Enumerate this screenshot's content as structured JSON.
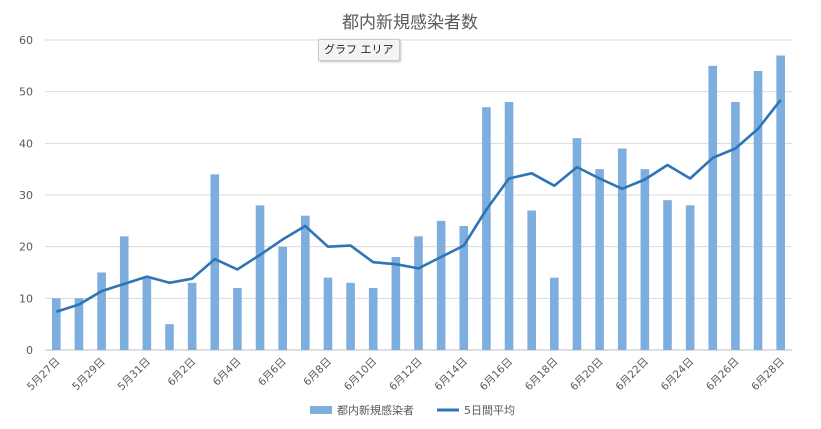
{
  "tooltip": "グラフ エリア",
  "colors": {
    "bar": "#7eaedd",
    "line": "#2e75b6",
    "grid": "#d9d9d9",
    "axis": "#bfbfbf",
    "text": "#595959"
  },
  "chart_data": {
    "type": "bar",
    "title": "都内新規感染者数",
    "xlabel": "",
    "ylabel": "",
    "ylim": [
      0,
      60
    ],
    "yticks": [
      0,
      10,
      20,
      30,
      40,
      50,
      60
    ],
    "grid": true,
    "legend_position": "bottom",
    "categories": [
      "5月27日",
      "5月28日",
      "5月29日",
      "5月30日",
      "5月31日",
      "6月1日",
      "6月2日",
      "6月3日",
      "6月4日",
      "6月5日",
      "6月6日",
      "6月7日",
      "6月8日",
      "6月9日",
      "6月10日",
      "6月11日",
      "6月12日",
      "6月13日",
      "6月14日",
      "6月15日",
      "6月16日",
      "6月17日",
      "6月18日",
      "6月19日",
      "6月20日",
      "6月21日",
      "6月22日",
      "6月23日",
      "6月24日",
      "6月25日",
      "6月26日",
      "6月27日",
      "6月28日"
    ],
    "x_tick_labels": [
      "5月27日",
      "5月29日",
      "5月31日",
      "6月2日",
      "6月4日",
      "6月6日",
      "6月8日",
      "6月10日",
      "6月12日",
      "6月14日",
      "6月16日",
      "6月18日",
      "6月20日",
      "6月22日",
      "6月24日",
      "6月26日",
      "6月28日"
    ],
    "series": [
      {
        "name": "都内新規感染者",
        "type": "bar",
        "values": [
          10,
          10,
          15,
          22,
          14,
          5,
          13,
          34,
          12,
          28,
          20,
          26,
          14,
          13,
          12,
          18,
          22,
          25,
          24,
          47,
          48,
          27,
          14,
          41,
          35,
          39,
          35,
          29,
          28,
          55,
          48,
          54,
          57
        ]
      },
      {
        "name": "5日間平均",
        "type": "line",
        "values": [
          7.4,
          8.8,
          11.4,
          12.8,
          14.2,
          13.0,
          13.8,
          17.6,
          15.6,
          18.4,
          21.4,
          24.0,
          20.0,
          20.2,
          17.0,
          16.6,
          15.8,
          18.0,
          20.2,
          27.2,
          33.2,
          34.2,
          31.8,
          35.4,
          33.2,
          31.2,
          33.0,
          35.8,
          33.2,
          37.2,
          39.0,
          42.8,
          48.4
        ]
      }
    ]
  }
}
